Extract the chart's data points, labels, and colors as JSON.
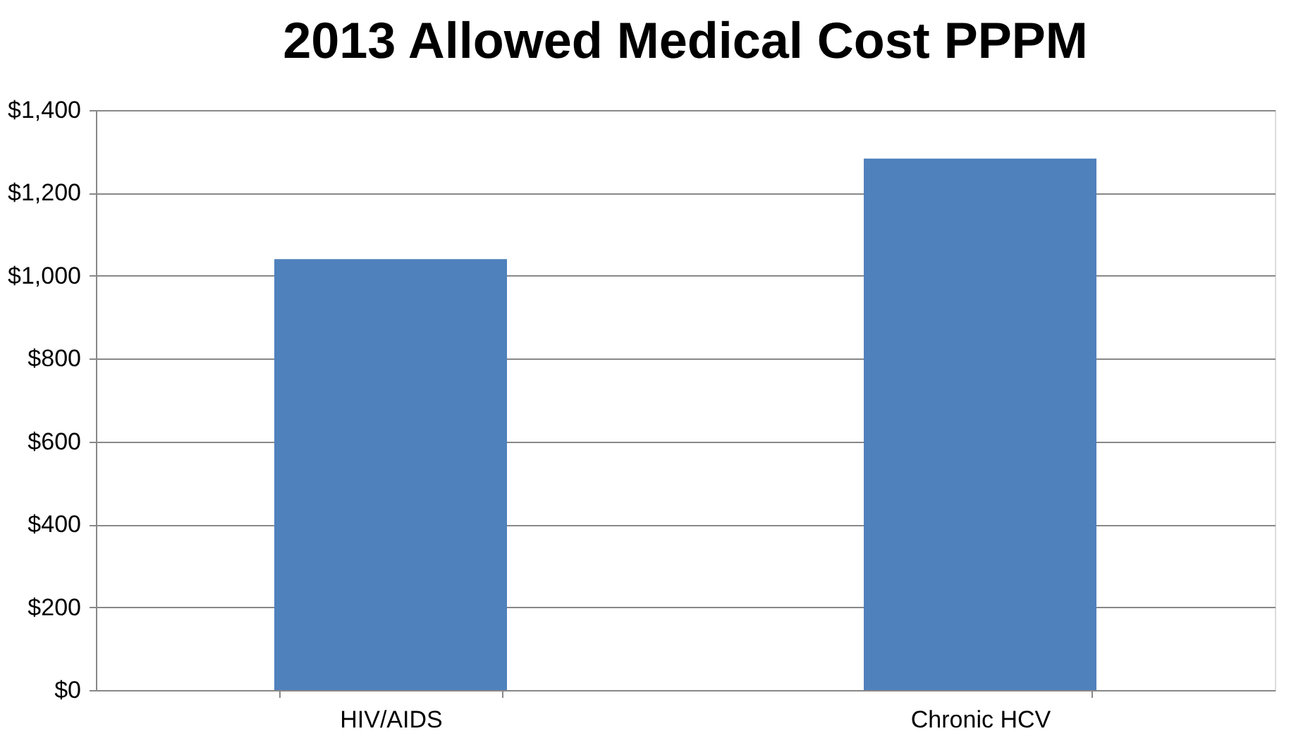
{
  "chart_data": {
    "type": "bar",
    "title": "2013 Allowed Medical Cost PPPM",
    "categories": [
      "HIV/AIDS",
      "Chronic HCV"
    ],
    "series": [
      {
        "color": "#4f81bd",
        "values": [
          1040,
          1283
        ]
      }
    ],
    "ylim": [
      0,
      1400
    ],
    "yticks": [
      {
        "value": 0,
        "label": "$0"
      },
      {
        "value": 200,
        "label": "$200"
      },
      {
        "value": 400,
        "label": "$400"
      },
      {
        "value": 600,
        "label": "$600"
      },
      {
        "value": 800,
        "label": "$800"
      },
      {
        "value": 1000,
        "label": "$1,000"
      },
      {
        "value": 1200,
        "label": "$1,200"
      },
      {
        "value": 1400,
        "label": "$1,400"
      }
    ],
    "grid": "y"
  }
}
